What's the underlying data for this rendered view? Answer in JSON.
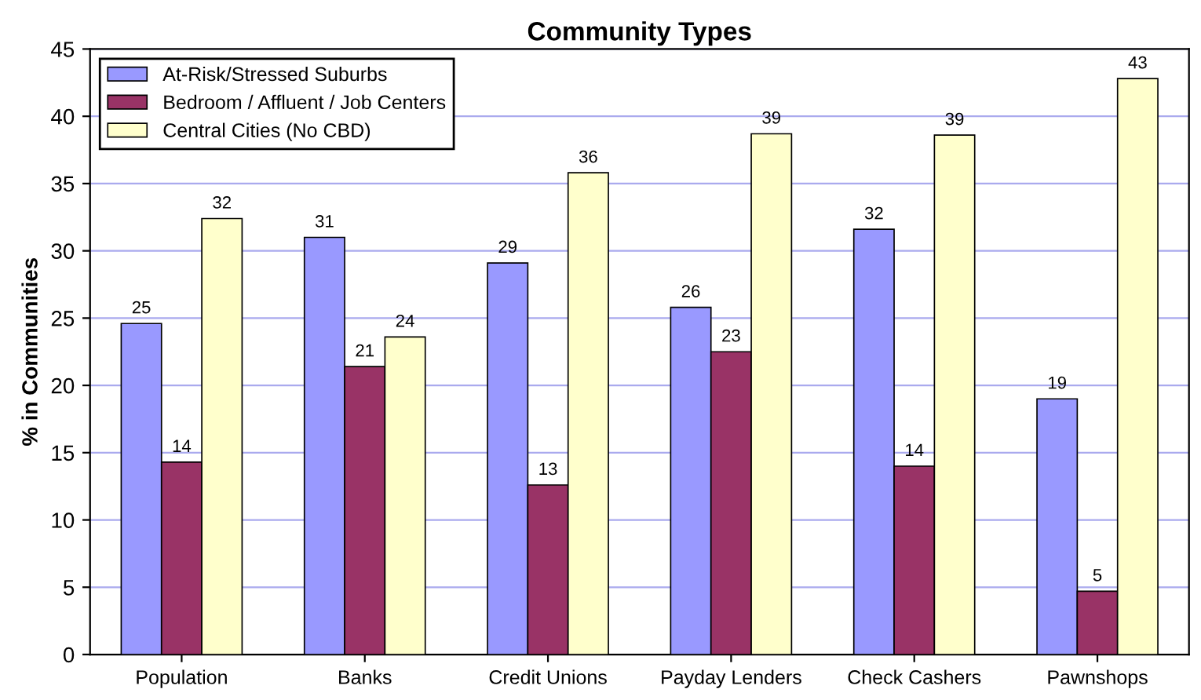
{
  "chart_data": {
    "type": "bar",
    "title": "Community Types",
    "ylabel": "% in Communities",
    "categories": [
      "Population",
      "Banks",
      "Credit Unions",
      "Payday Lenders",
      "Check Cashers",
      "Pawnshops"
    ],
    "series": [
      {
        "name": "At-Risk/Stressed Suburbs",
        "color": "#9999ff",
        "values": [
          24.6,
          31.0,
          29.1,
          25.8,
          31.6,
          19.0
        ],
        "value_labels": [
          "25",
          "31",
          "29",
          "26",
          "32",
          "19"
        ]
      },
      {
        "name": "Bedroom / Affluent / Job Centers",
        "color": "#993366",
        "values": [
          14.3,
          21.4,
          12.6,
          22.5,
          14.0,
          4.7
        ],
        "value_labels": [
          "14",
          "21",
          "13",
          "23",
          "14",
          "5"
        ]
      },
      {
        "name": "Central Cities (No CBD)",
        "color": "#ffffcc",
        "values": [
          32.4,
          23.6,
          35.8,
          38.7,
          38.6,
          42.8
        ],
        "value_labels": [
          "32",
          "24",
          "36",
          "39",
          "39",
          "43"
        ]
      }
    ],
    "ylim": [
      0,
      45
    ],
    "yticks": [
      0,
      5,
      10,
      15,
      20,
      25,
      30,
      35,
      40,
      45
    ],
    "grid": "y",
    "legend": "top left"
  }
}
